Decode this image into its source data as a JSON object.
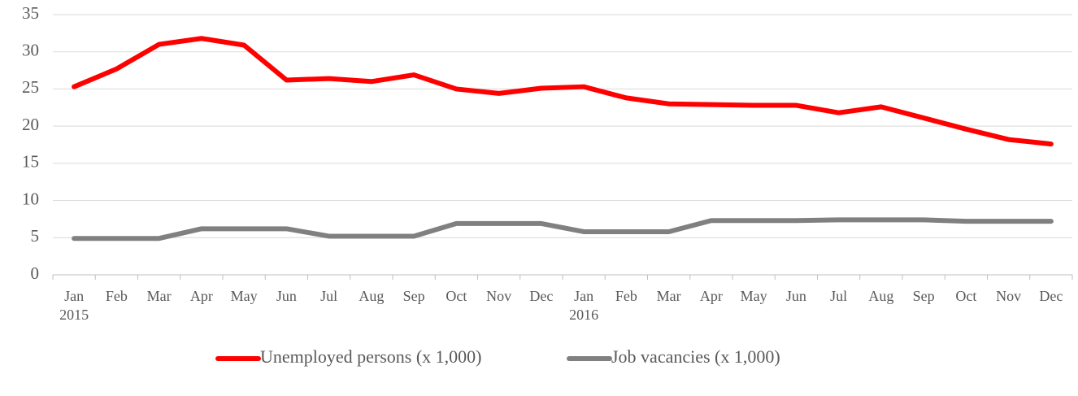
{
  "chart_data": {
    "type": "line",
    "categories": [
      "Jan 2015",
      "Feb",
      "Mar",
      "Apr",
      "May",
      "Jun",
      "Jul",
      "Aug",
      "Sep",
      "Oct",
      "Nov",
      "Dec",
      "Jan 2016",
      "Feb",
      "Mar",
      "Apr",
      "May",
      "Jun",
      "Jul",
      "Aug",
      "Sep",
      "Oct",
      "Nov",
      "Dec"
    ],
    "series": [
      {
        "name": "Unemployed persons (x 1,000)",
        "color": "#ff0000",
        "values": [
          25.3,
          27.7,
          31.0,
          31.8,
          30.9,
          26.2,
          26.4,
          26.0,
          26.9,
          25.0,
          24.4,
          25.1,
          25.3,
          23.8,
          23.0,
          22.9,
          22.8,
          22.8,
          21.8,
          22.6,
          21.1,
          19.6,
          18.2,
          17.6
        ]
      },
      {
        "name": "Job vacancies (x 1,000)",
        "color": "#808080",
        "values": [
          4.9,
          4.9,
          4.9,
          6.2,
          6.2,
          6.2,
          5.2,
          5.2,
          5.2,
          6.9,
          6.9,
          6.9,
          5.8,
          5.8,
          5.8,
          7.3,
          7.3,
          7.3,
          7.4,
          7.4,
          7.4,
          7.2,
          7.2,
          7.2
        ]
      }
    ],
    "ylim": [
      0,
      35
    ],
    "yticks": [
      0,
      5,
      10,
      15,
      20,
      25,
      30,
      35
    ],
    "grid": true,
    "legend": "bottom"
  }
}
